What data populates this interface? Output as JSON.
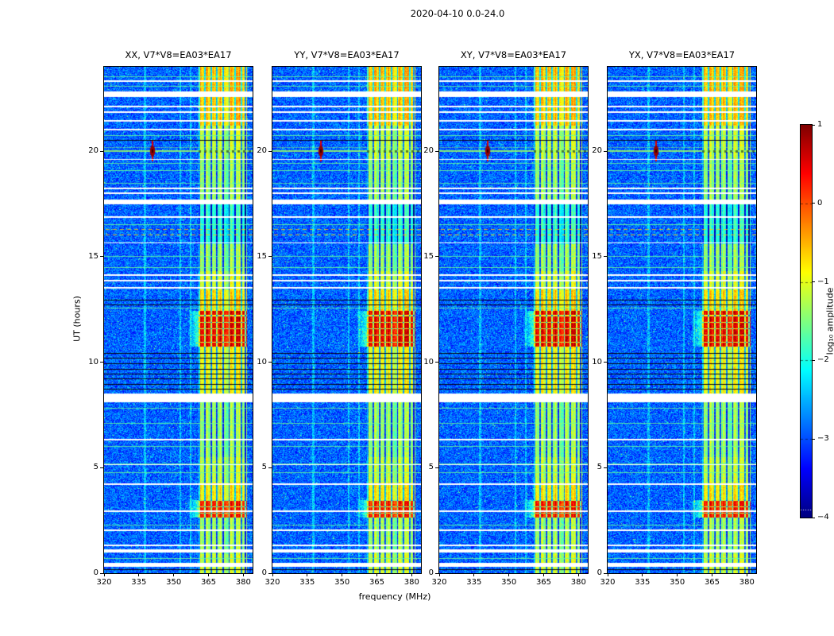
{
  "chart_data": {
    "type": "heatmap",
    "title": "2020-04-10 0.0-24.0",
    "panels": [
      "XX, V7*V8=EA03*EA17",
      "YY, V7*V8=EA03*EA17",
      "XY, V7*V8=EA03*EA17",
      "YX, V7*V8=EA03*EA17"
    ],
    "xlabel": "frequency (MHz)",
    "ylabel": "UT (hours)",
    "x_range": [
      320,
      384
    ],
    "y_range": [
      0,
      24
    ],
    "x_ticks": [
      320,
      335,
      350,
      365,
      380
    ],
    "y_ticks": [
      0,
      5,
      10,
      15,
      20
    ],
    "colorbar": {
      "label": "log₁₀ amplitude",
      "range": [
        -4,
        1
      ],
      "ticks": [
        1,
        0,
        -1,
        -2,
        -3,
        -4
      ],
      "dashed_ticks": [
        0,
        -1,
        -2,
        -3
      ],
      "dotted_line": -3.9,
      "colormap": "jet"
    },
    "background_level": -2.9,
    "noise_spread": 0.5,
    "rfi_band": {
      "f_start": 360.6,
      "f_end": 381.6,
      "base_level": -1.15
    },
    "band_dark_lines_mhz": [
      361.0,
      363.5,
      366.1,
      368.7,
      371.3,
      373.9,
      376.5,
      379.1,
      380.9
    ],
    "faint_lines_mhz": [
      337.6,
      352.9,
      357.4
    ],
    "band_time_profile": [
      {
        "t0": 0.0,
        "t1": 0.9,
        "level": -1.05
      },
      {
        "t0": 0.9,
        "t1": 2.62,
        "level": -1.25
      },
      {
        "t0": 3.45,
        "t1": 4.3,
        "level": -0.75
      },
      {
        "t0": 4.3,
        "t1": 5.5,
        "level": -1.1
      },
      {
        "t0": 5.5,
        "t1": 8.1,
        "level": -1.3
      },
      {
        "t0": 8.1,
        "t1": 10.72,
        "level": -0.85
      },
      {
        "t0": 12.45,
        "t1": 13.4,
        "level": -0.65
      },
      {
        "t0": 13.4,
        "t1": 14.3,
        "level": -1.0
      },
      {
        "t0": 14.3,
        "t1": 15.6,
        "level": -1.3
      },
      {
        "t0": 15.6,
        "t1": 17.6,
        "level": -1.85
      },
      {
        "t0": 17.6,
        "t1": 19.6,
        "level": -1.3
      },
      {
        "t0": 19.6,
        "t1": 21.2,
        "level": -1.1
      },
      {
        "t0": 21.2,
        "t1": 22.6,
        "level": -0.55
      },
      {
        "t0": 22.6,
        "t1": 24.01,
        "level": -0.5
      }
    ],
    "strong_bursts": [
      {
        "t0": 2.62,
        "t1": 3.45,
        "level": 0.35
      },
      {
        "t0": 10.72,
        "t1": 12.45,
        "level": 0.55
      }
    ],
    "data_gaps_ut": [
      [
        0.33,
        0.5
      ],
      [
        0.98,
        1.12
      ],
      [
        1.26,
        1.34
      ],
      [
        2.0,
        2.06
      ],
      [
        2.92,
        2.99
      ],
      [
        4.18,
        4.25
      ],
      [
        5.12,
        5.16
      ],
      [
        6.3,
        6.36
      ],
      [
        8.12,
        8.52
      ],
      [
        13.47,
        13.55
      ],
      [
        13.82,
        13.9
      ],
      [
        14.08,
        14.15
      ],
      [
        15.62,
        15.66
      ],
      [
        16.85,
        16.91
      ],
      [
        17.5,
        17.72
      ],
      [
        17.98,
        18.05
      ],
      [
        18.22,
        18.28
      ],
      [
        19.58,
        19.62
      ],
      [
        21.0,
        21.07
      ],
      [
        21.4,
        21.47
      ],
      [
        21.82,
        21.9
      ],
      [
        22.08,
        22.15
      ],
      [
        22.6,
        22.85
      ],
      [
        23.3,
        23.37
      ]
    ],
    "dark_lines_ut": [
      0.18,
      8.75,
      8.98,
      9.22,
      9.46,
      9.7,
      9.95,
      10.2,
      10.45,
      12.75,
      12.95,
      20.55
    ],
    "bright_lines_ut": [
      0.7,
      2.3,
      4.8,
      5.2,
      6.02,
      7.12,
      7.82,
      12.6,
      14.52,
      15.05,
      16.55,
      18.5,
      19.1,
      19.45,
      20.75,
      23.1,
      23.55
    ],
    "dashed_streaks_ut": [
      16.05,
      16.32
    ],
    "flare": {
      "ut": 20.0,
      "freq_mhz": 340.5,
      "level": 0.9
    }
  }
}
